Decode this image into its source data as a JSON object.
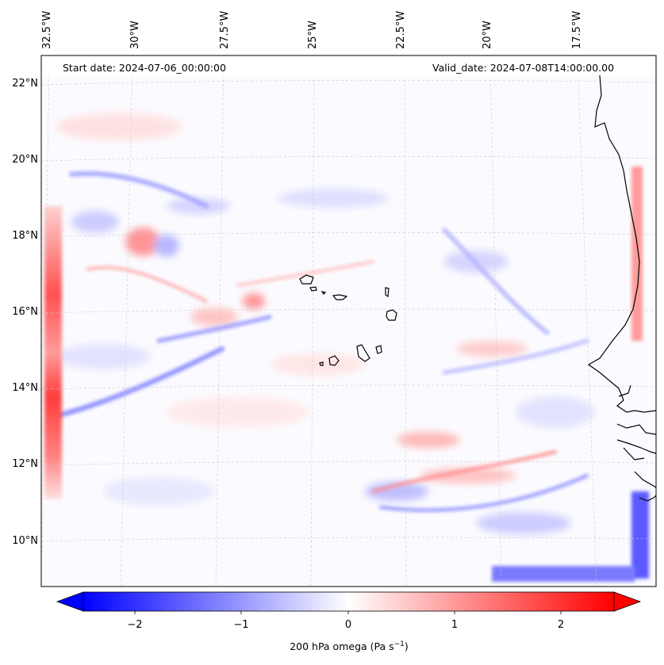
{
  "map": {
    "title_left": "Start date: 2024-07-06_00:00:00",
    "title_right": "Valid_date: 2024-07-08T14:00:00.00",
    "lon_labels": [
      "32.5°W",
      "30°W",
      "27.5°W",
      "25°W",
      "22.5°W",
      "20°W",
      "17.5°W"
    ],
    "lat_labels": [
      "22°N",
      "20°N",
      "18°N",
      "16°N",
      "14°N",
      "12°N",
      "10°N"
    ],
    "field": "200 hPa omega",
    "colormap": "bwr",
    "colors": {
      "negative": "#0000ff",
      "zero": "#ffffff",
      "positive": "#ff0000",
      "coast": "#000000",
      "grid": "#c8c8c8"
    }
  },
  "colorbar": {
    "label_main": "200 hPa omega (Pa s",
    "label_sup": "−1",
    "label_end": ")",
    "ticks": [
      "−2",
      "−1",
      "0",
      "1",
      "2"
    ],
    "range": [
      -2.75,
      2.75
    ]
  }
}
